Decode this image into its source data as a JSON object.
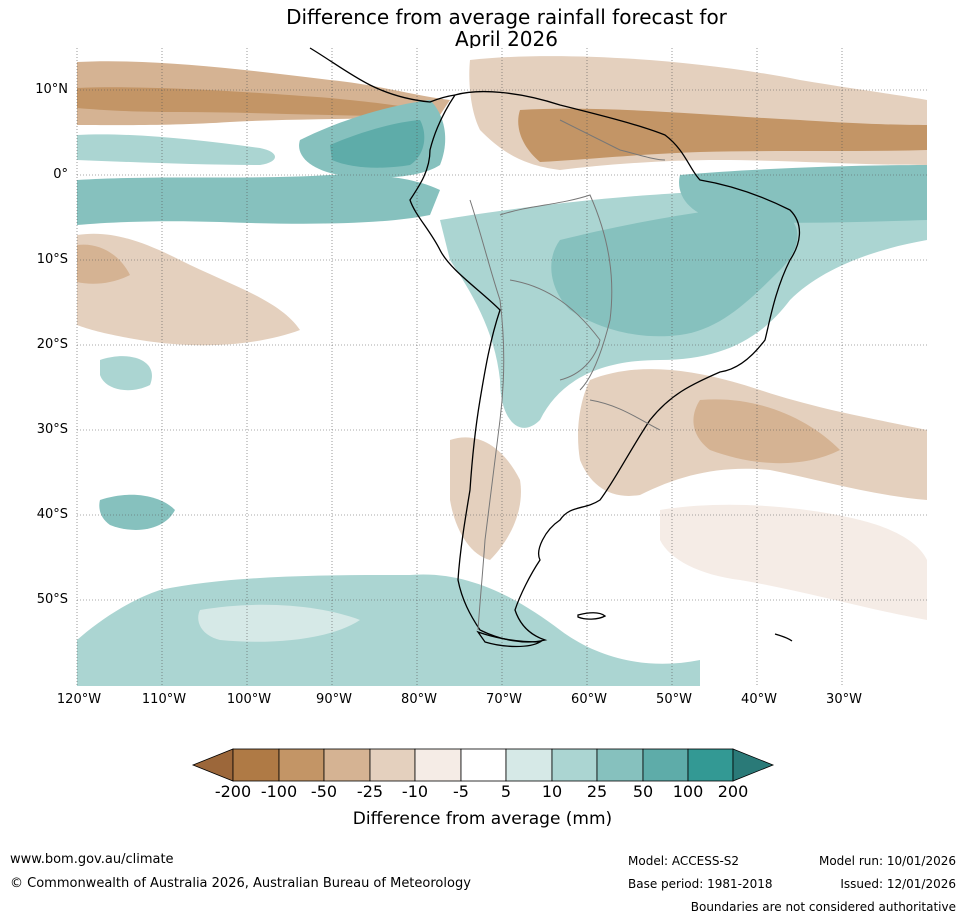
{
  "title": {
    "line1": "Difference from average rainfall forecast for",
    "line2": "April 2026"
  },
  "map": {
    "latitude_labels": [
      "10°N",
      "0°",
      "10°S",
      "20°S",
      "30°S",
      "40°S",
      "50°S"
    ],
    "longitude_labels": [
      "120°W",
      "110°W",
      "100°W",
      "90°W",
      "80°W",
      "70°W",
      "60°W",
      "50°W",
      "40°W",
      "30°W"
    ],
    "extent": {
      "lon_min": -120,
      "lon_max": -20,
      "lat_min": -60,
      "lat_max": 15
    }
  },
  "colorbar": {
    "tick_labels": [
      "-200",
      "-100",
      "-50",
      "-25",
      "-10",
      "-5",
      "5",
      "10",
      "25",
      "50",
      "100",
      "200"
    ],
    "colors": [
      "#9c673a",
      "#af7a45",
      "#c39566",
      "#d5b393",
      "#e4d0be",
      "#f5ece6",
      "#ffffff",
      "#d6e9e7",
      "#abd5d2",
      "#86c1be",
      "#5eaca9",
      "#339994",
      "#2a7a78"
    ],
    "label": "Difference from average (mm)"
  },
  "footer": {
    "website": "www.bom.gov.au/climate",
    "copyright": "© Commonwealth of Australia 2026, Australian Bureau of Meteorology",
    "model": "Model: ACCESS-S2",
    "base_period": "Base period: 1981-2018",
    "model_run": "Model run: 10/01/2026",
    "issued": "Issued: 12/01/2026",
    "disclaimer": "Boundaries are not considered authoritative"
  }
}
